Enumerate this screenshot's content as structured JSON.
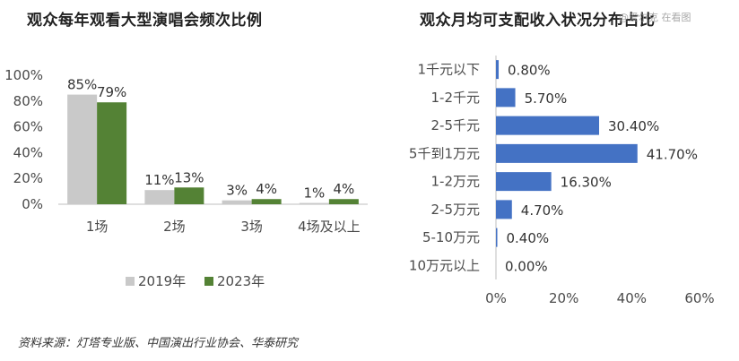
{
  "watermark": "@爱尔克 在看图",
  "source_note": "资料来源：灯塔专业版、中国演出行业协会、华泰研究",
  "chart_data": [
    {
      "type": "bar",
      "title": "观众每年观看大型演唱会频次比例",
      "categories": [
        "1场",
        "2场",
        "3场",
        "4场及以上"
      ],
      "series": [
        {
          "name": "2019年",
          "values": [
            85,
            11,
            3,
            1
          ],
          "labels": [
            "85%",
            "11%",
            "3%",
            "1%"
          ],
          "color": "#c9c9c9"
        },
        {
          "name": "2023年",
          "values": [
            79,
            13,
            4,
            4
          ],
          "labels": [
            "79%",
            "13%",
            "4%",
            "4%"
          ],
          "color": "#548235"
        }
      ],
      "yticks": [
        "0%",
        "20%",
        "40%",
        "60%",
        "80%",
        "100%"
      ],
      "ylim": [
        0,
        100
      ],
      "legend": "bottom",
      "grid": false
    },
    {
      "type": "bar",
      "orientation": "horizontal",
      "title": "观众月均可支配收入状况分布占比",
      "categories": [
        "1千元以下",
        "1-2千元",
        "2-5千元",
        "5千到1万元",
        "1-2万元",
        "2-5万元",
        "5-10万元",
        "10万元以上"
      ],
      "values": [
        0.8,
        5.7,
        30.4,
        41.7,
        16.3,
        4.7,
        0.4,
        0.0
      ],
      "labels": [
        "0.80%",
        "5.70%",
        "30.40%",
        "41.70%",
        "16.30%",
        "4.70%",
        "0.40%",
        "0.00%"
      ],
      "color": "#4472c4",
      "xticks": [
        "0%",
        "20%",
        "40%",
        "60%"
      ],
      "xlim": [
        0,
        60
      ],
      "grid": false
    }
  ]
}
